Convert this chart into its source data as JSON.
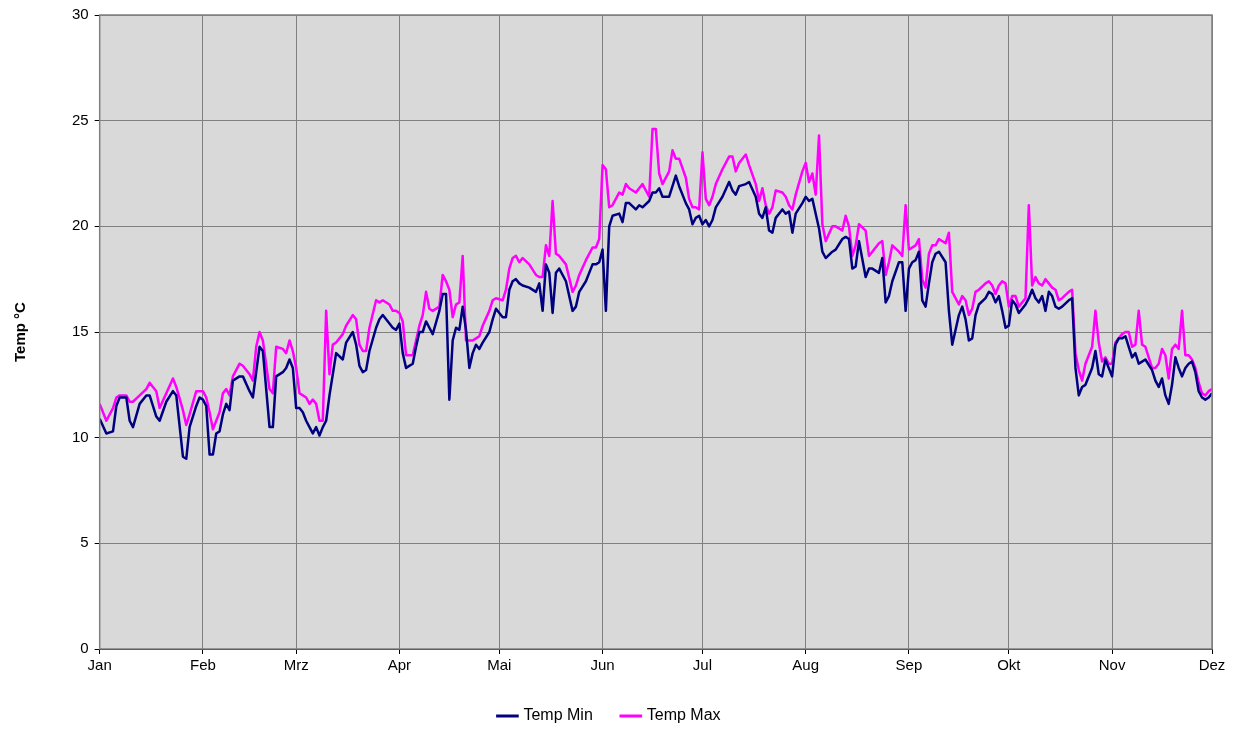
{
  "chart_data": {
    "type": "line",
    "ylabel": "Temp °C",
    "x": [
      "--01-01",
      "--01-03",
      "--01-05",
      "--01-06",
      "--01-07",
      "--01-09",
      "--01-10",
      "--01-11",
      "--01-13",
      "--01-15",
      "--01-16",
      "--01-18",
      "--01-19",
      "--01-21",
      "--01-23",
      "--01-24",
      "--01-26",
      "--01-27",
      "--01-28",
      "--01-30",
      "--01-31",
      "--02-01",
      "--02-02",
      "--02-03",
      "--02-04",
      "--02-05",
      "--02-06",
      "--02-07",
      "--02-08",
      "--02-09",
      "--02-10",
      "--02-12",
      "--02-13",
      "--02-15",
      "--02-16",
      "--02-17",
      "--02-18",
      "--02-19",
      "--02-21",
      "--02-22",
      "--02-23",
      "--02-25",
      "--02-26",
      "--02-27",
      "--02-28",
      "--03-01",
      "--03-02",
      "--03-03",
      "--03-04",
      "--03-05",
      "--03-06",
      "--03-07",
      "--03-08",
      "--03-09",
      "--03-10",
      "--03-11",
      "--03-12",
      "--03-13",
      "--03-15",
      "--03-16",
      "--03-18",
      "--03-19",
      "--03-20",
      "--03-21",
      "--03-22",
      "--03-23",
      "--03-25",
      "--03-26",
      "--03-27",
      "--03-29",
      "--03-30",
      "--03-31",
      "--04-01",
      "--04-02",
      "--04-03",
      "--04-05",
      "--04-06",
      "--04-07",
      "--04-08",
      "--04-09",
      "--04-10",
      "--04-11",
      "--04-13",
      "--04-14",
      "--04-15",
      "--04-16",
      "--04-17",
      "--04-18",
      "--04-19",
      "--04-20",
      "--04-21",
      "--04-22",
      "--04-23",
      "--04-24",
      "--04-25",
      "--04-26",
      "--04-28",
      "--04-29",
      "--04-30",
      "--05-02",
      "--05-03",
      "--05-04",
      "--05-05",
      "--05-06",
      "--05-07",
      "--05-08",
      "--05-10",
      "--05-12",
      "--05-13",
      "--05-14",
      "--05-15",
      "--05-16",
      "--05-17",
      "--05-18",
      "--05-19",
      "--05-21",
      "--05-23",
      "--05-24",
      "--05-25",
      "--05-27",
      "--05-29",
      "--05-30",
      "--05-31",
      "--06-01",
      "--06-02",
      "--06-03",
      "--06-04",
      "--06-06",
      "--06-07",
      "--06-08",
      "--06-09",
      "--06-11",
      "--06-12",
      "--06-13",
      "--06-15",
      "--06-16",
      "--06-17",
      "--06-18",
      "--06-19",
      "--06-21",
      "--06-22",
      "--06-23",
      "--06-24",
      "--06-26",
      "--06-27",
      "--06-28",
      "--06-29",
      "--06-30",
      "--07-01",
      "--07-02",
      "--07-03",
      "--07-04",
      "--07-05",
      "--07-07",
      "--07-09",
      "--07-10",
      "--07-11",
      "--07-12",
      "--07-14",
      "--07-15",
      "--07-17",
      "--07-18",
      "--07-19",
      "--07-20",
      "--07-21",
      "--07-22",
      "--07-23",
      "--07-25",
      "--07-26",
      "--07-27",
      "--07-28",
      "--07-29",
      "--07-31",
      "--08-01",
      "--08-02",
      "--08-03",
      "--08-04",
      "--08-05",
      "--08-06",
      "--08-07",
      "--08-09",
      "--08-10",
      "--08-12",
      "--08-13",
      "--08-14",
      "--08-15",
      "--08-16",
      "--08-17",
      "--08-19",
      "--08-20",
      "--08-21",
      "--08-23",
      "--08-24",
      "--08-25",
      "--08-26",
      "--08-27",
      "--08-29",
      "--08-30",
      "--08-31",
      "--09-01",
      "--09-02",
      "--09-03",
      "--09-04",
      "--09-05",
      "--09-06",
      "--09-07",
      "--09-08",
      "--09-09",
      "--09-10",
      "--09-12",
      "--09-13",
      "--09-14",
      "--09-16",
      "--09-17",
      "--09-18",
      "--09-19",
      "--09-20",
      "--09-21",
      "--09-22",
      "--09-24",
      "--09-25",
      "--09-26",
      "--09-27",
      "--09-28",
      "--09-29",
      "--09-30",
      "--10-01",
      "--10-02",
      "--10-03",
      "--10-04",
      "--10-06",
      "--10-07",
      "--10-08",
      "--10-09",
      "--10-10",
      "--10-11",
      "--10-12",
      "--10-13",
      "--10-14",
      "--10-15",
      "--10-16",
      "--10-17",
      "--10-19",
      "--10-20",
      "--10-21",
      "--10-22",
      "--10-23",
      "--10-24",
      "--10-26",
      "--10-27",
      "--10-28",
      "--10-29",
      "--10-30",
      "--10-31",
      "--11-01",
      "--11-02",
      "--11-03",
      "--11-04",
      "--11-05",
      "--11-06",
      "--11-07",
      "--11-08",
      "--11-09",
      "--11-10",
      "--11-11",
      "--11-13",
      "--11-14",
      "--11-15",
      "--11-16",
      "--11-17",
      "--11-18",
      "--11-19",
      "--11-20",
      "--11-21",
      "--11-22",
      "--11-23",
      "--11-24",
      "--11-25",
      "--11-26",
      "--11-27",
      "--11-28",
      "--11-29",
      "--11-30",
      "--12-01"
    ],
    "series": [
      {
        "name": "Temp Min",
        "color": "#000080",
        "values": [
          10.9,
          10.2,
          10.3,
          11.5,
          11.9,
          11.9,
          10.8,
          10.5,
          11.6,
          12.0,
          12.0,
          11.0,
          10.8,
          11.7,
          12.2,
          12.0,
          9.1,
          9.0,
          10.5,
          11.5,
          11.9,
          11.8,
          11.5,
          9.2,
          9.2,
          10.2,
          10.3,
          11.1,
          11.6,
          11.3,
          12.7,
          12.9,
          12.9,
          12.2,
          11.9,
          13.1,
          14.3,
          14.1,
          10.5,
          10.5,
          12.9,
          13.1,
          13.3,
          13.7,
          13.3,
          11.4,
          11.4,
          11.2,
          10.8,
          10.5,
          10.2,
          10.5,
          10.1,
          10.5,
          10.8,
          12.0,
          13.0,
          14.0,
          13.7,
          14.5,
          15.0,
          14.4,
          13.4,
          13.1,
          13.2,
          14.1,
          15.2,
          15.6,
          15.8,
          15.4,
          15.2,
          15.1,
          15.4,
          14.0,
          13.3,
          13.5,
          14.3,
          15.0,
          15.0,
          15.5,
          15.2,
          14.9,
          16.0,
          16.8,
          16.8,
          11.8,
          14.6,
          15.2,
          15.1,
          16.2,
          15.1,
          13.3,
          14.0,
          14.4,
          14.2,
          14.5,
          15.0,
          15.6,
          16.1,
          15.7,
          15.7,
          17.0,
          17.4,
          17.5,
          17.3,
          17.2,
          17.1,
          16.9,
          17.3,
          16.0,
          18.2,
          17.8,
          15.9,
          17.8,
          18.0,
          17.4,
          16.0,
          16.2,
          16.9,
          17.4,
          18.2,
          18.2,
          18.3,
          18.9,
          16.0,
          20.0,
          20.5,
          20.6,
          20.2,
          21.1,
          21.1,
          20.8,
          21.0,
          20.9,
          21.2,
          21.6,
          21.6,
          21.8,
          21.4,
          21.4,
          21.9,
          22.4,
          21.9,
          21.1,
          20.8,
          20.1,
          20.4,
          20.5,
          20.1,
          20.3,
          20.0,
          20.3,
          20.9,
          21.4,
          22.1,
          21.7,
          21.5,
          21.9,
          22.0,
          22.1,
          21.4,
          20.6,
          20.4,
          20.9,
          19.8,
          19.7,
          20.4,
          20.8,
          20.6,
          20.7,
          19.7,
          20.6,
          21.1,
          21.4,
          21.2,
          21.3,
          20.6,
          19.9,
          18.8,
          18.5,
          18.8,
          18.9,
          19.4,
          19.5,
          19.4,
          18.0,
          18.1,
          19.3,
          17.6,
          18.0,
          18.0,
          17.8,
          18.5,
          16.4,
          16.7,
          17.4,
          18.3,
          18.3,
          16.0,
          18.0,
          18.3,
          18.4,
          18.8,
          16.5,
          16.2,
          17.3,
          18.3,
          18.7,
          18.8,
          18.3,
          16.0,
          14.4,
          15.8,
          16.2,
          15.6,
          14.6,
          14.7,
          15.8,
          16.3,
          16.6,
          16.9,
          16.8,
          16.4,
          16.7,
          16.0,
          15.2,
          15.3,
          16.5,
          16.3,
          15.9,
          16.3,
          16.6,
          17.0,
          16.6,
          16.4,
          16.7,
          16.0,
          16.9,
          16.7,
          16.2,
          16.1,
          16.2,
          16.5,
          16.6,
          13.3,
          12.0,
          12.4,
          12.5,
          13.3,
          14.1,
          13.0,
          12.9,
          13.7,
          13.3,
          12.9,
          14.4,
          14.7,
          14.7,
          14.8,
          14.3,
          13.8,
          14.0,
          13.5,
          13.6,
          13.7,
          13.2,
          12.7,
          12.4,
          12.8,
          12.0,
          11.6,
          12.5,
          13.8,
          13.3,
          12.9,
          13.3,
          13.5,
          13.6,
          13.1,
          12.2,
          11.9,
          11.8,
          11.9,
          12.1
        ]
      },
      {
        "name": "Temp Max",
        "color": "#ff00ff",
        "values": [
          11.6,
          10.8,
          11.4,
          11.9,
          12.0,
          12.0,
          11.7,
          11.7,
          12.0,
          12.3,
          12.6,
          12.2,
          11.4,
          12.1,
          12.8,
          12.4,
          11.3,
          10.6,
          11.1,
          12.2,
          12.2,
          12.2,
          11.9,
          11.2,
          10.4,
          10.8,
          11.2,
          12.1,
          12.3,
          12.0,
          12.9,
          13.5,
          13.4,
          13.0,
          12.7,
          14.3,
          15.0,
          14.6,
          12.3,
          12.1,
          14.3,
          14.2,
          14.0,
          14.6,
          14.1,
          13.3,
          12.1,
          12.0,
          11.9,
          11.6,
          11.8,
          11.6,
          10.8,
          10.8,
          16.0,
          13.0,
          14.4,
          14.5,
          14.9,
          15.3,
          15.8,
          15.6,
          14.4,
          14.1,
          14.1,
          15.2,
          16.5,
          16.4,
          16.5,
          16.3,
          16.0,
          16.0,
          15.9,
          15.5,
          13.9,
          13.9,
          14.6,
          15.3,
          15.8,
          16.9,
          16.1,
          16.0,
          16.2,
          17.7,
          17.4,
          17.0,
          15.7,
          16.3,
          16.4,
          18.6,
          14.6,
          14.6,
          14.6,
          14.7,
          14.8,
          15.3,
          16.0,
          16.5,
          16.6,
          16.5,
          17.0,
          18.0,
          18.5,
          18.6,
          18.3,
          18.5,
          18.2,
          17.7,
          17.6,
          17.6,
          19.1,
          18.6,
          21.2,
          18.7,
          18.6,
          18.2,
          16.9,
          17.2,
          17.7,
          18.4,
          19.0,
          19.0,
          19.4,
          22.9,
          22.7,
          20.9,
          21.0,
          21.6,
          21.5,
          22.0,
          21.8,
          21.6,
          21.8,
          22.0,
          21.4,
          24.6,
          24.6,
          22.5,
          22.0,
          22.6,
          23.6,
          23.2,
          23.2,
          22.3,
          21.3,
          20.9,
          20.9,
          20.8,
          23.5,
          21.3,
          21.0,
          21.4,
          22.0,
          22.7,
          23.3,
          23.3,
          22.6,
          23.0,
          23.4,
          22.9,
          22.0,
          21.2,
          21.8,
          21.0,
          20.6,
          20.9,
          21.7,
          21.6,
          21.4,
          21.0,
          20.8,
          21.5,
          22.6,
          23.0,
          22.1,
          22.5,
          21.5,
          24.3,
          20.1,
          19.3,
          20.0,
          20.0,
          19.8,
          20.5,
          20.0,
          18.6,
          19.1,
          20.1,
          19.8,
          18.6,
          18.8,
          19.2,
          19.3,
          17.7,
          18.3,
          19.1,
          18.8,
          18.6,
          21.0,
          18.9,
          19.0,
          19.1,
          19.4,
          17.5,
          17.1,
          18.7,
          19.1,
          19.1,
          19.4,
          19.2,
          19.7,
          16.9,
          16.3,
          16.7,
          16.5,
          15.8,
          16.1,
          16.9,
          17.0,
          17.3,
          17.4,
          17.2,
          16.8,
          17.2,
          17.4,
          17.3,
          16.2,
          16.7,
          16.7,
          16.2,
          16.6,
          21.0,
          17.2,
          17.6,
          17.3,
          17.2,
          17.5,
          17.3,
          17.1,
          17.0,
          16.5,
          16.6,
          16.9,
          17.0,
          14.0,
          13.2,
          12.7,
          13.5,
          14.3,
          16.0,
          14.5,
          13.6,
          13.8,
          13.5,
          13.5,
          14.5,
          14.7,
          14.9,
          15.0,
          15.0,
          14.3,
          14.4,
          16.0,
          14.4,
          14.3,
          13.3,
          13.3,
          13.5,
          14.2,
          13.9,
          12.8,
          14.2,
          14.4,
          14.2,
          16.0,
          13.9,
          13.9,
          13.7,
          13.3,
          12.6,
          12.1,
          12.0,
          12.2,
          12.3
        ]
      }
    ],
    "xlim": [
      "--01-01",
      "--12-01"
    ],
    "xticks": [
      {
        "value": "--01-01",
        "label": "Jan"
      },
      {
        "value": "--02-01",
        "label": "Feb"
      },
      {
        "value": "--03-01",
        "label": "Mrz"
      },
      {
        "value": "--04-01",
        "label": "Apr"
      },
      {
        "value": "--05-01",
        "label": "Mai"
      },
      {
        "value": "--06-01",
        "label": "Jun"
      },
      {
        "value": "--07-01",
        "label": "Jul"
      },
      {
        "value": "--08-01",
        "label": "Aug"
      },
      {
        "value": "--09-01",
        "label": "Sep"
      },
      {
        "value": "--10-01",
        "label": "Okt"
      },
      {
        "value": "--11-01",
        "label": "Nov"
      },
      {
        "value": "--12-01",
        "label": "Dez"
      }
    ],
    "ylim": [
      0,
      30
    ],
    "yticks": [
      0,
      5,
      10,
      15,
      20,
      25,
      30
    ],
    "grid": true,
    "legend": "bottom",
    "marker": "none",
    "line_style": "solid"
  }
}
